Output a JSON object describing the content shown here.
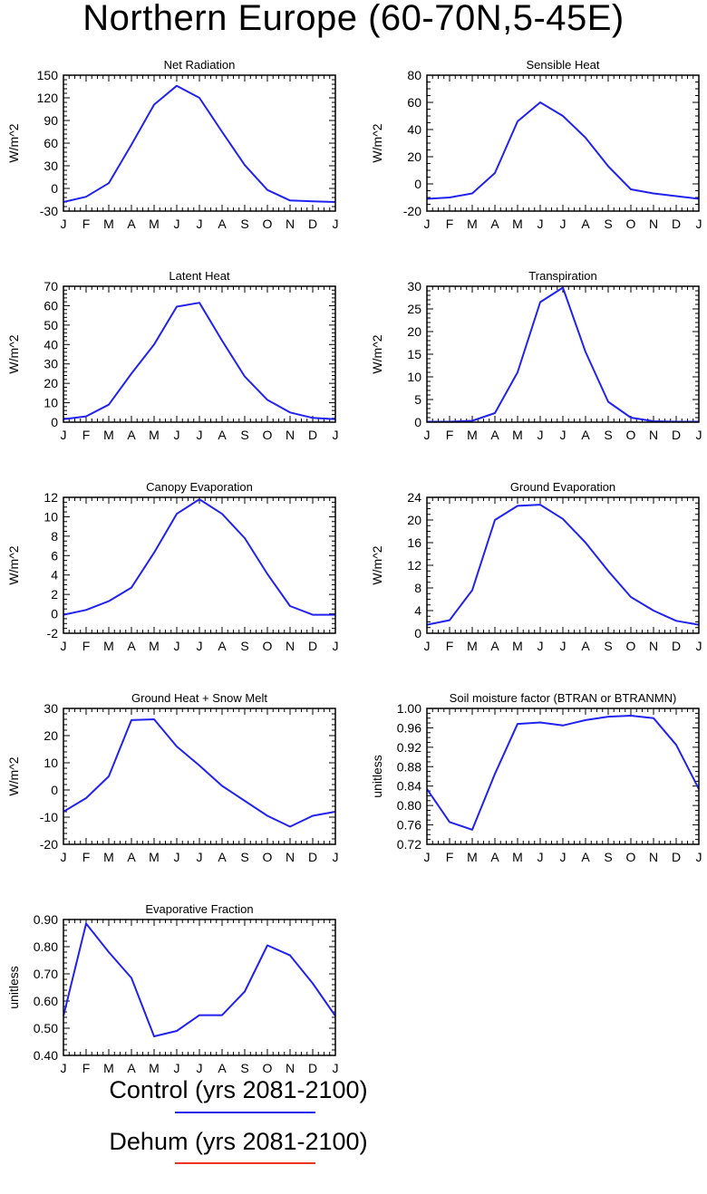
{
  "page": {
    "title": "Northern Europe (60-70N,5-45E)"
  },
  "legend": {
    "items": [
      {
        "label": "Control (yrs 2081-2100)",
        "color": "#2222ee"
      },
      {
        "label": "Dehum (yrs 2081-2100)",
        "color": "#ee3322"
      }
    ]
  },
  "chart_data": [
    {
      "type": "line",
      "title": "Net Radiation",
      "ylabel": "W/m^2",
      "xlabel": "",
      "categories": [
        "J",
        "F",
        "M",
        "A",
        "M",
        "J",
        "J",
        "A",
        "S",
        "O",
        "N",
        "D",
        "J"
      ],
      "ylim": [
        -30,
        150
      ],
      "yticks": [
        -30,
        0,
        30,
        60,
        90,
        120,
        150
      ],
      "ytick_labels": [
        "-30",
        "0",
        "30",
        "60",
        "90",
        "120",
        "150"
      ],
      "yminor": 5,
      "series": [
        {
          "color": "#2222ee",
          "values": [
            -18,
            -11,
            7,
            58,
            111,
            136,
            120,
            75,
            31,
            -2,
            -16,
            -17,
            -18
          ]
        }
      ]
    },
    {
      "type": "line",
      "title": "Sensible Heat",
      "ylabel": "W/m^2",
      "xlabel": "",
      "categories": [
        "J",
        "F",
        "M",
        "A",
        "M",
        "J",
        "J",
        "A",
        "S",
        "O",
        "N",
        "D",
        "J"
      ],
      "ylim": [
        -20,
        80
      ],
      "yticks": [
        -20,
        0,
        20,
        40,
        60,
        80
      ],
      "ytick_labels": [
        "-20",
        "0",
        "20",
        "40",
        "60",
        "80"
      ],
      "yminor": 4,
      "series": [
        {
          "color": "#2222ee",
          "values": [
            -11,
            -10,
            -7,
            8,
            46,
            60,
            50,
            34,
            13,
            -4,
            -7,
            -9,
            -11
          ]
        }
      ]
    },
    {
      "type": "line",
      "title": "Latent Heat",
      "ylabel": "W/m^2",
      "xlabel": "",
      "categories": [
        "J",
        "F",
        "M",
        "A",
        "M",
        "J",
        "J",
        "A",
        "S",
        "O",
        "N",
        "D",
        "J"
      ],
      "ylim": [
        0,
        70
      ],
      "yticks": [
        0,
        10,
        20,
        30,
        40,
        50,
        60,
        70
      ],
      "ytick_labels": [
        "0",
        "10",
        "20",
        "30",
        "40",
        "50",
        "60",
        "70"
      ],
      "yminor": 5,
      "series": [
        {
          "color": "#2222ee",
          "values": [
            1.5,
            3,
            9,
            25,
            40,
            59.5,
            61.5,
            42,
            23.5,
            11.5,
            5,
            2.2,
            1.5
          ]
        }
      ]
    },
    {
      "type": "line",
      "title": "Transpiration",
      "ylabel": "W/m^2",
      "xlabel": "",
      "categories": [
        "J",
        "F",
        "M",
        "A",
        "M",
        "J",
        "J",
        "A",
        "S",
        "O",
        "N",
        "D",
        "J"
      ],
      "ylim": [
        0,
        30
      ],
      "yticks": [
        0,
        5,
        10,
        15,
        20,
        25,
        30
      ],
      "ytick_labels": [
        "0",
        "5",
        "10",
        "15",
        "20",
        "25",
        "30"
      ],
      "yminor": 5,
      "series": [
        {
          "color": "#2222ee",
          "values": [
            0.1,
            0.1,
            0.3,
            2,
            11,
            26.5,
            29.7,
            15.5,
            4.5,
            1,
            0.2,
            0.1,
            0.1
          ]
        }
      ]
    },
    {
      "type": "line",
      "title": "Canopy Evaporation",
      "ylabel": "W/m^2",
      "xlabel": "",
      "categories": [
        "J",
        "F",
        "M",
        "A",
        "M",
        "J",
        "J",
        "A",
        "S",
        "O",
        "N",
        "D",
        "J"
      ],
      "ylim": [
        -2,
        12
      ],
      "yticks": [
        -2,
        0,
        2,
        4,
        6,
        8,
        10,
        12
      ],
      "ytick_labels": [
        "-2",
        "0",
        "2",
        "4",
        "6",
        "8",
        "10",
        "12"
      ],
      "yminor": 4,
      "series": [
        {
          "color": "#2222ee",
          "values": [
            -0.1,
            0.4,
            1.3,
            2.7,
            6.3,
            10.3,
            11.8,
            10.3,
            7.8,
            4.1,
            0.8,
            -0.1,
            -0.1
          ]
        }
      ]
    },
    {
      "type": "line",
      "title": "Ground Evaporation",
      "ylabel": "W/m^2",
      "xlabel": "",
      "categories": [
        "J",
        "F",
        "M",
        "A",
        "M",
        "J",
        "J",
        "A",
        "S",
        "O",
        "N",
        "D",
        "J"
      ],
      "ylim": [
        0,
        24
      ],
      "yticks": [
        0,
        4,
        8,
        12,
        16,
        20,
        24
      ],
      "ytick_labels": [
        "0",
        "4",
        "8",
        "12",
        "16",
        "20",
        "24"
      ],
      "yminor": 4,
      "series": [
        {
          "color": "#2222ee",
          "values": [
            1.5,
            2.3,
            7.6,
            20,
            22.5,
            22.7,
            20.2,
            16,
            11,
            6.4,
            4,
            2.2,
            1.5
          ]
        }
      ]
    },
    {
      "type": "line",
      "title": "Ground Heat + Snow Melt",
      "ylabel": "W/m^2",
      "xlabel": "",
      "categories": [
        "J",
        "F",
        "M",
        "A",
        "M",
        "J",
        "J",
        "A",
        "S",
        "O",
        "N",
        "D",
        "J"
      ],
      "ylim": [
        -20,
        30
      ],
      "yticks": [
        -20,
        -10,
        0,
        10,
        20,
        30
      ],
      "ytick_labels": [
        "-20",
        "-10",
        "0",
        "10",
        "20",
        "30"
      ],
      "yminor": 5,
      "series": [
        {
          "color": "#2222ee",
          "values": [
            -8,
            -3,
            5,
            25.7,
            26,
            16,
            9,
            1.5,
            -4,
            -9.5,
            -13.5,
            -9.5,
            -8
          ]
        }
      ]
    },
    {
      "type": "line",
      "title": "Soil moisture factor (BTRAN or BTRANMN)",
      "ylabel": "unitless",
      "xlabel": "",
      "categories": [
        "J",
        "F",
        "M",
        "A",
        "M",
        "J",
        "J",
        "A",
        "S",
        "O",
        "N",
        "D",
        "J"
      ],
      "ylim": [
        0.72,
        1.0
      ],
      "yticks": [
        0.72,
        0.76,
        0.8,
        0.84,
        0.88,
        0.92,
        0.96,
        1.0
      ],
      "ytick_labels": [
        "0.72",
        "0.76",
        "0.80",
        "0.84",
        "0.88",
        "0.92",
        "0.96",
        "1.00"
      ],
      "yminor": 4,
      "series": [
        {
          "color": "#2222ee",
          "values": [
            0.834,
            0.766,
            0.75,
            0.865,
            0.968,
            0.971,
            0.965,
            0.976,
            0.983,
            0.985,
            0.98,
            0.925,
            0.834
          ]
        }
      ]
    },
    {
      "type": "line",
      "title": "Evaporative Fraction",
      "ylabel": "unitless",
      "xlabel": "",
      "categories": [
        "J",
        "F",
        "M",
        "A",
        "M",
        "J",
        "J",
        "A",
        "S",
        "O",
        "N",
        "D",
        "J"
      ],
      "ylim": [
        0.4,
        0.9
      ],
      "yticks": [
        0.4,
        0.5,
        0.6,
        0.7,
        0.8,
        0.9
      ],
      "ytick_labels": [
        "0.40",
        "0.50",
        "0.60",
        "0.70",
        "0.80",
        "0.90"
      ],
      "yminor": 5,
      "series": [
        {
          "color": "#2222ee",
          "values": [
            0.545,
            0.885,
            0.78,
            0.685,
            0.47,
            0.49,
            0.548,
            0.548,
            0.635,
            0.805,
            0.768,
            0.665,
            0.545
          ]
        }
      ]
    }
  ]
}
